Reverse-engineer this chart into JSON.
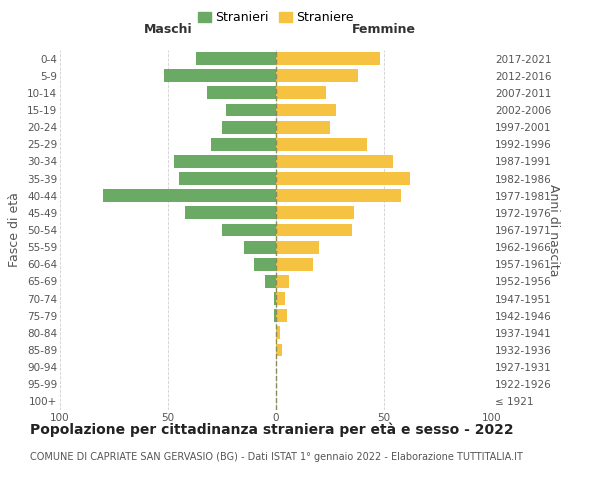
{
  "age_groups": [
    "100+",
    "95-99",
    "90-94",
    "85-89",
    "80-84",
    "75-79",
    "70-74",
    "65-69",
    "60-64",
    "55-59",
    "50-54",
    "45-49",
    "40-44",
    "35-39",
    "30-34",
    "25-29",
    "20-24",
    "15-19",
    "10-14",
    "5-9",
    "0-4"
  ],
  "birth_years": [
    "≤ 1921",
    "1922-1926",
    "1927-1931",
    "1932-1936",
    "1937-1941",
    "1942-1946",
    "1947-1951",
    "1952-1956",
    "1957-1961",
    "1962-1966",
    "1967-1971",
    "1972-1976",
    "1977-1981",
    "1982-1986",
    "1987-1991",
    "1992-1996",
    "1997-2001",
    "2002-2006",
    "2007-2011",
    "2012-2016",
    "2017-2021"
  ],
  "maschi": [
    0,
    0,
    0,
    0,
    0,
    1,
    1,
    5,
    10,
    15,
    25,
    42,
    80,
    45,
    47,
    30,
    25,
    23,
    32,
    52,
    37
  ],
  "femmine": [
    0,
    0,
    0,
    3,
    2,
    5,
    4,
    6,
    17,
    20,
    35,
    36,
    58,
    62,
    54,
    42,
    25,
    28,
    23,
    38,
    48
  ],
  "maschi_color": "#6aaa64",
  "femmine_color": "#f5c242",
  "center_line_color": "#8a8a5a",
  "grid_color": "#d0d0d0",
  "background_color": "#ffffff",
  "title": "Popolazione per cittadinanza straniera per età e sesso - 2022",
  "subtitle": "COMUNE DI CAPRIATE SAN GERVASIO (BG) - Dati ISTAT 1° gennaio 2022 - Elaborazione TUTTITALIA.IT",
  "ylabel_left": "Fasce di età",
  "ylabel_right": "Anni di nascita",
  "xlabel_left": "Maschi",
  "xlabel_right": "Femmine",
  "legend_maschi": "Stranieri",
  "legend_femmine": "Straniere",
  "xlim": 100,
  "title_fontsize": 10,
  "subtitle_fontsize": 7,
  "label_fontsize": 9,
  "tick_fontsize": 7.5
}
